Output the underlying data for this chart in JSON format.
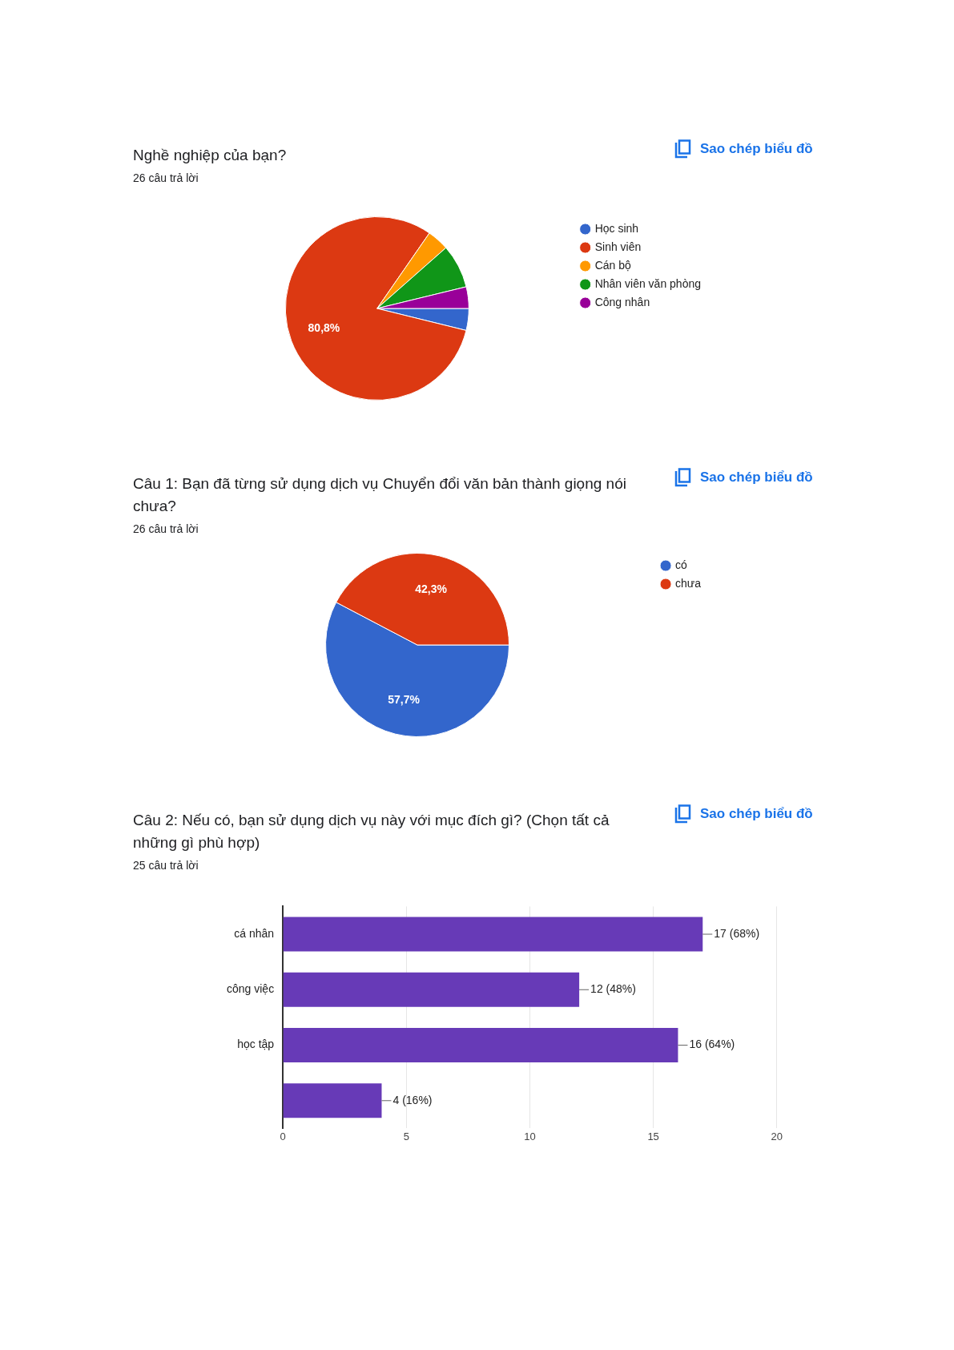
{
  "chart_data": [
    {
      "type": "pie",
      "title": "Nghề nghiệp của bạn?",
      "subtitle": "26 câu trả lời",
      "annotations": [
        "Sao chép biểu đồ"
      ],
      "categories": [
        "Học sinh",
        "Sinh viên",
        "Cán bộ",
        "Nhân viên văn phòng",
        "Công nhân"
      ],
      "values": [
        3.85,
        80.8,
        3.85,
        7.7,
        3.8
      ],
      "colors": [
        "#3366cc",
        "#dc3912",
        "#ff9900",
        "#109618",
        "#990099"
      ],
      "value_labels": [
        null,
        "80,8%",
        null,
        null,
        null
      ],
      "legend": "top right"
    },
    {
      "type": "pie",
      "title": "Câu 1: Bạn đã từng sử dụng dịch vụ Chuyển đổi văn bản thành giọng nói chưa?",
      "subtitle": "26 câu trả lời",
      "annotations": [
        "Sao chép biểu đồ"
      ],
      "categories": [
        "có",
        "chưa"
      ],
      "values": [
        57.7,
        42.3
      ],
      "colors": [
        "#3366cc",
        "#dc3912"
      ],
      "value_labels": [
        "57,7%",
        "42,3%"
      ],
      "legend": "top right"
    },
    {
      "type": "bar",
      "orientation": "horizontal",
      "title": "Câu 2: Nếu có, bạn sử dụng dịch vụ này với mục đích gì? (Chọn tất cả những gì phù hợp)",
      "subtitle": "25 câu trả lời",
      "annotations": [
        "Sao chép biểu đồ"
      ],
      "categories": [
        "cá nhân",
        "công việc",
        "học tập",
        null
      ],
      "values": [
        17,
        12,
        16,
        4
      ],
      "color": "#673ab7",
      "value_labels": [
        "17 (68%)",
        "12 (48%)",
        "16 (64%)",
        "4 (16%)"
      ],
      "xlim": [
        0,
        20
      ],
      "xticks": [
        0,
        5,
        10,
        15,
        20
      ],
      "grid": "x"
    }
  ]
}
